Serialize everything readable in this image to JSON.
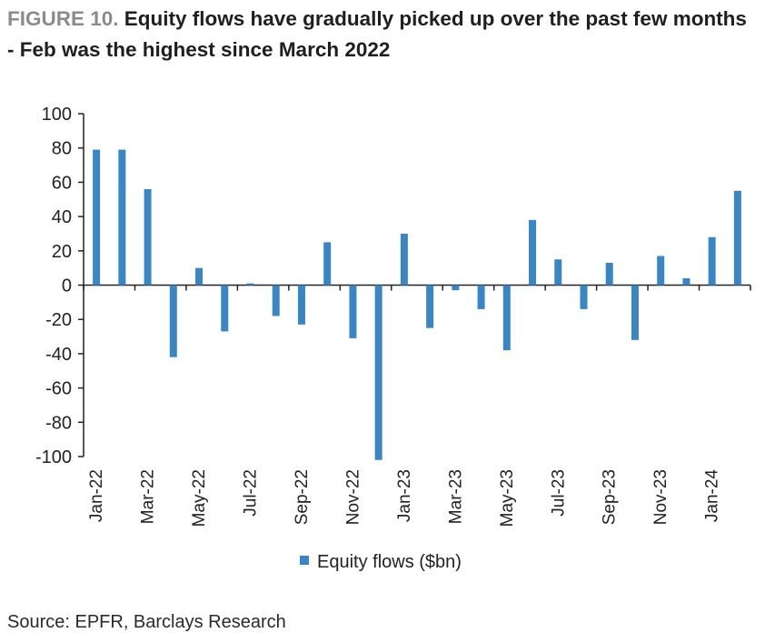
{
  "header": {
    "figure_label": "FIGURE 10.",
    "title": "Equity flows have gradually picked up over the past few months - Feb was the highest since March 2022"
  },
  "footer": {
    "source": "Source: EPFR, Barclays Research"
  },
  "colors": {
    "bar": "#3a86c4",
    "axis": "#222222",
    "text": "#222222"
  },
  "chart_data": {
    "type": "bar",
    "title": "Equity flows have gradually picked up over the past few months - Feb was the highest since March 2022",
    "xlabel": "",
    "ylabel": "",
    "ylim": [
      -100,
      100
    ],
    "yticks": [
      100,
      80,
      60,
      40,
      20,
      0,
      -20,
      -40,
      -60,
      -80,
      -100
    ],
    "grid": false,
    "legend_position": "bottom-center",
    "categories": [
      "Jan-22",
      "Feb-22",
      "Mar-22",
      "Apr-22",
      "May-22",
      "Jun-22",
      "Jul-22",
      "Aug-22",
      "Sep-22",
      "Oct-22",
      "Nov-22",
      "Dec-22",
      "Jan-23",
      "Feb-23",
      "Mar-23",
      "Apr-23",
      "May-23",
      "Jun-23",
      "Jul-23",
      "Aug-23",
      "Sep-23",
      "Oct-23",
      "Nov-23",
      "Dec-23",
      "Jan-24",
      "Feb-24"
    ],
    "tick_labels": [
      "Jan-22",
      "Mar-22",
      "May-22",
      "Jul-22",
      "Sep-22",
      "Nov-22",
      "Jan-23",
      "Mar-23",
      "May-23",
      "Jul-23",
      "Sep-23",
      "Nov-23",
      "Jan-24"
    ],
    "series": [
      {
        "name": "Equity flows ($bn)",
        "values": [
          79,
          79,
          56,
          -42,
          10,
          -27,
          1,
          -18,
          -23,
          25,
          -31,
          -102,
          30,
          -25,
          -3,
          -14,
          -38,
          38,
          15,
          -14,
          13,
          -32,
          17,
          4,
          28,
          55
        ]
      }
    ]
  }
}
